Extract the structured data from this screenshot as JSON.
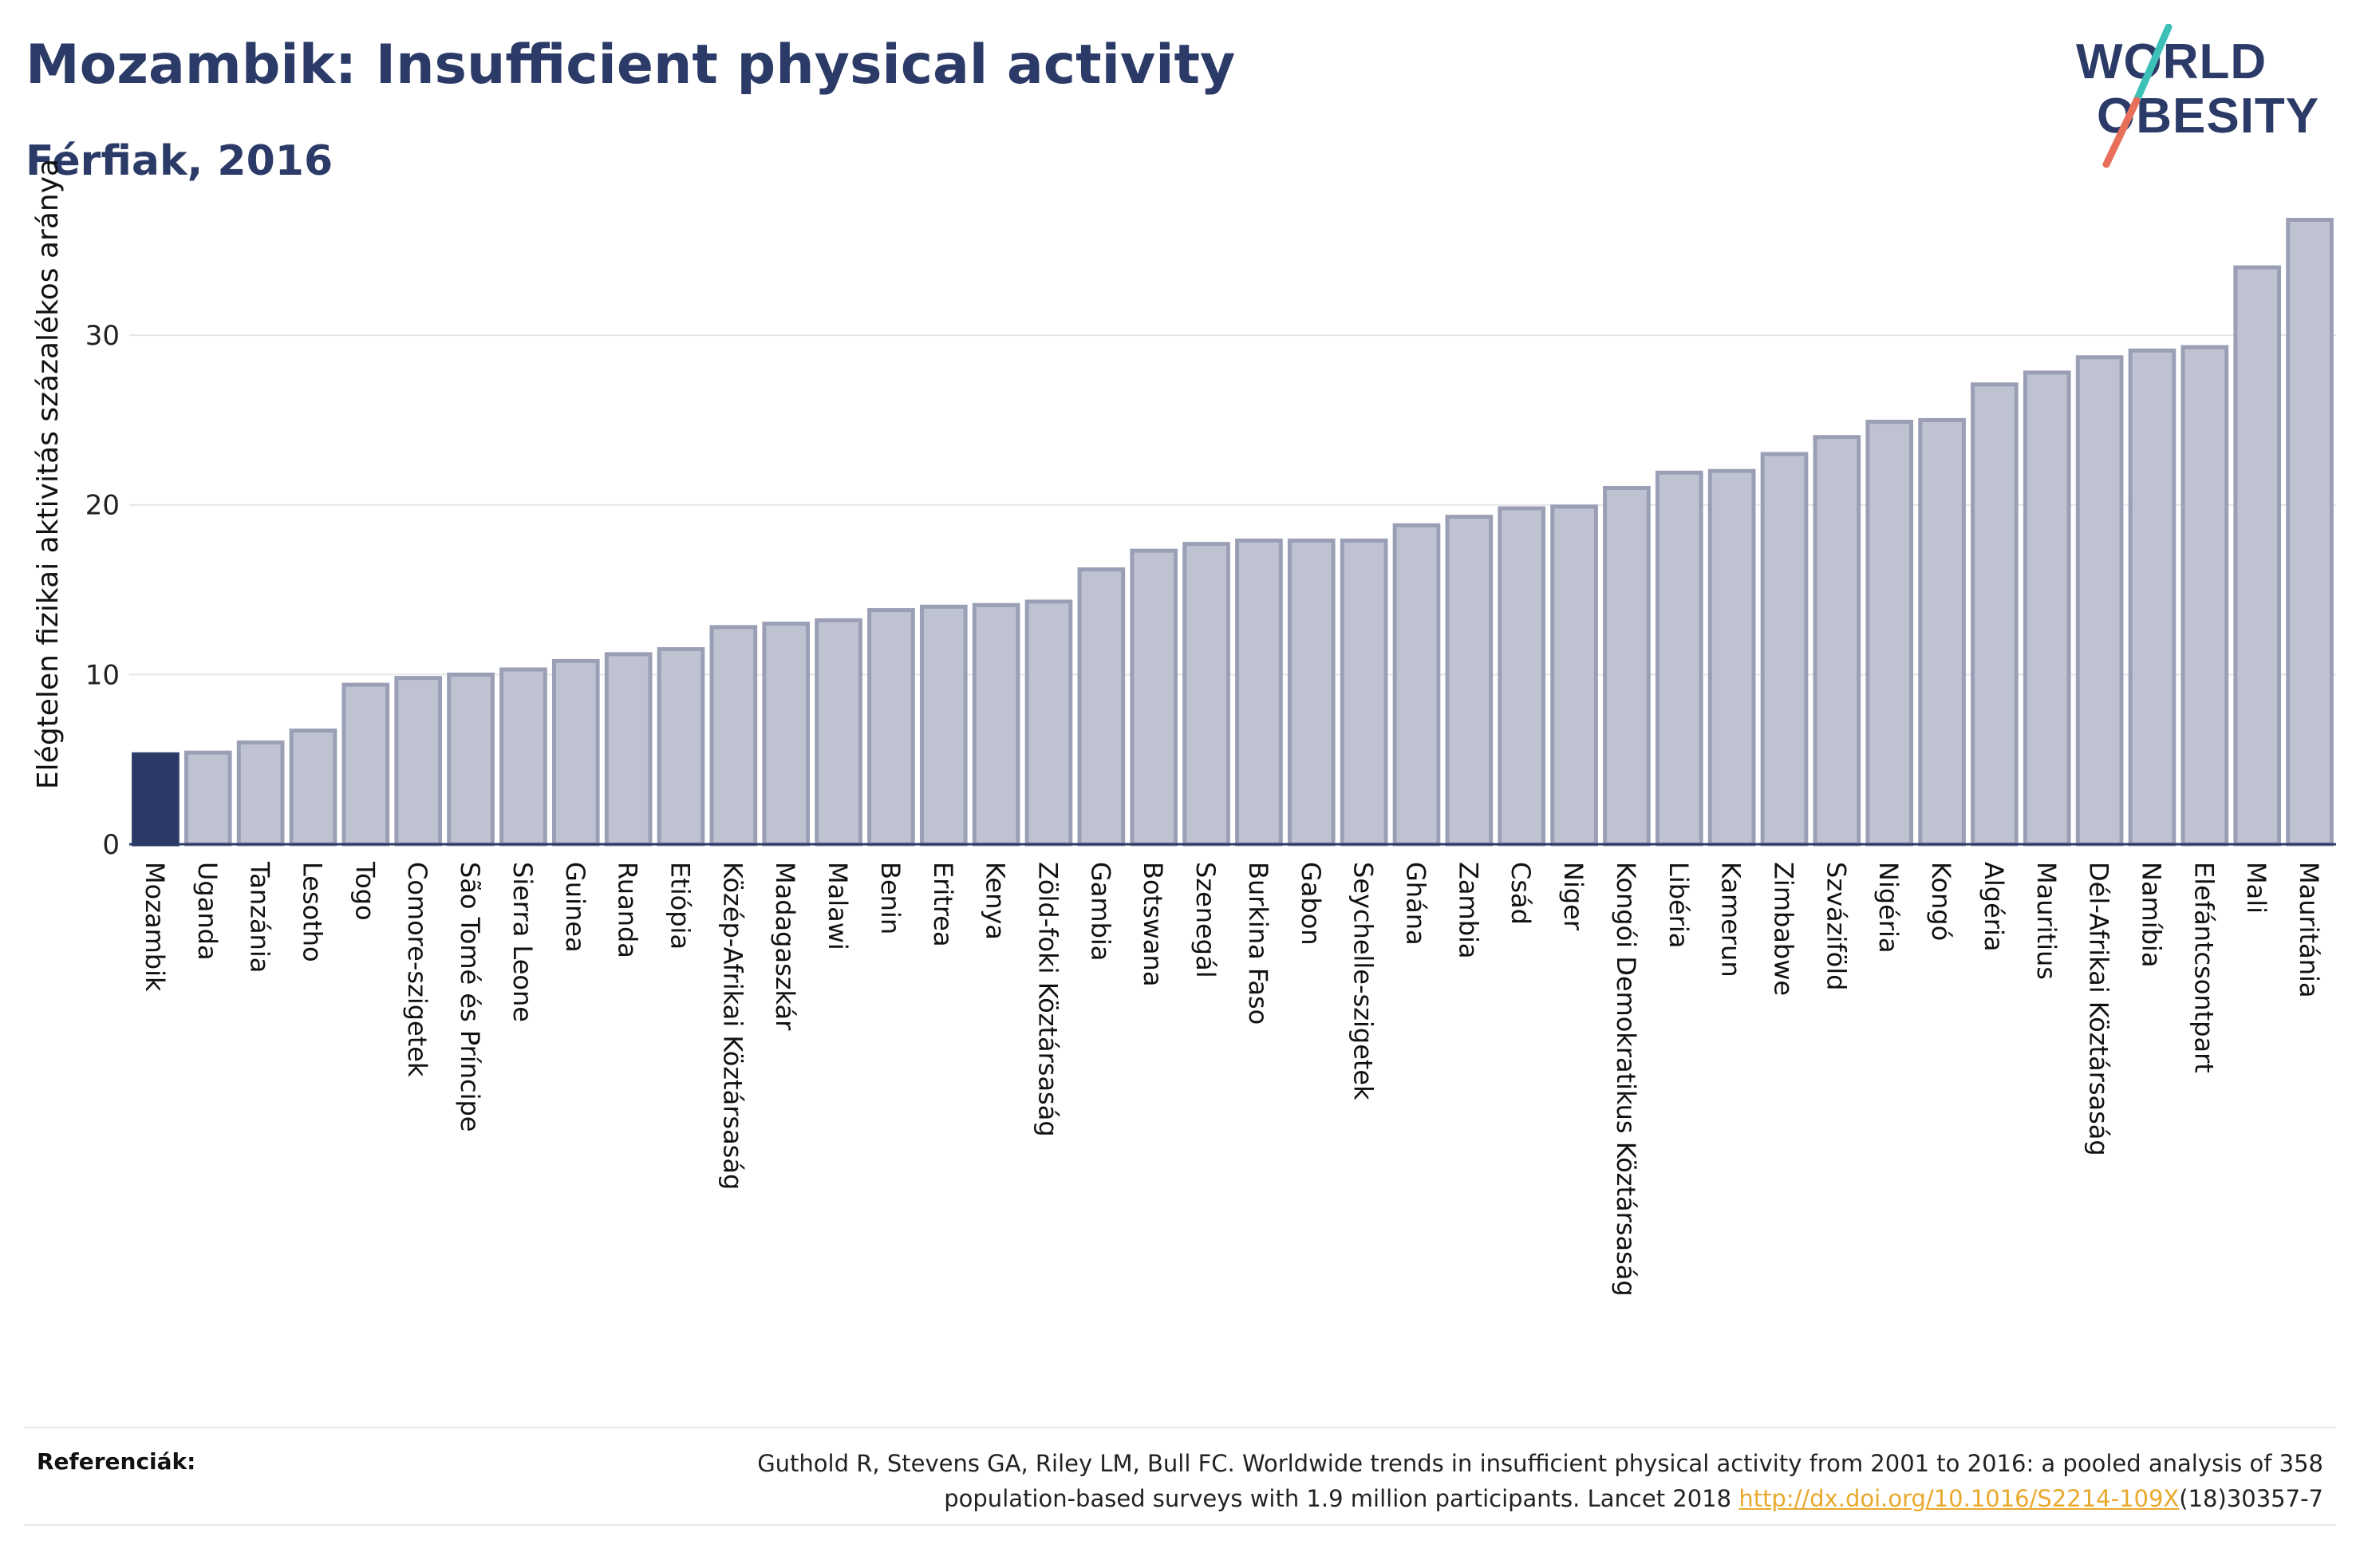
{
  "header": {
    "title": "Mozambik: Insufficient physical activity",
    "subtitle": "Férfiak, 2016"
  },
  "logo": {
    "line1": "WORLD",
    "line2": "OBESITY",
    "colors": {
      "text": "#2b3a67",
      "slash_top": "#3cc0b8",
      "slash_bottom": "#e8705a"
    }
  },
  "chart_data": {
    "type": "bar",
    "ylabel": "Elégtelen fizikai aktivitás százalékos aránya",
    "xlabel": "",
    "ylim": [
      0,
      38
    ],
    "yticks": [
      0,
      10,
      20,
      30
    ],
    "grid": true,
    "highlight_category": "Mozambik",
    "colors": {
      "highlight": "#2b3a67",
      "bar": "#bfc3d1",
      "bar_stroke": "#9a9fb6",
      "axis": "#2b3a67",
      "grid": "#e6e6ea"
    },
    "categories": [
      "Mozambik",
      "Uganda",
      "Tanzánia",
      "Lesotho",
      "Togo",
      "Comore-szigetek",
      "São Tomé és Príncipe",
      "Sierra Leone",
      "Guinea",
      "Ruanda",
      "Etiópia",
      "Közép-Afrikai Köztársaság",
      "Madagaszkár",
      "Malawi",
      "Benin",
      "Eritrea",
      "Kenya",
      "Zöld-foki Köztársaság",
      "Gambia",
      "Botswana",
      "Szenegál",
      "Burkina Faso",
      "Gabon",
      "Seychelle-szigetek",
      "Ghána",
      "Zambia",
      "Csád",
      "Niger",
      "Kongói Demokratikus Köztársaság",
      "Libéria",
      "Kamerun",
      "Zimbabwe",
      "Szváziföld",
      "Nigéria",
      "Kongó",
      "Algéria",
      "Mauritius",
      "Dél-Afrikai Köztársaság",
      "Namíbia",
      "Elefántcsontpart",
      "Mali",
      "Mauritánia"
    ],
    "values": [
      5.3,
      5.4,
      6.0,
      6.7,
      9.4,
      9.8,
      10.0,
      10.3,
      10.8,
      11.2,
      11.5,
      12.8,
      13.0,
      13.2,
      13.8,
      14.0,
      14.1,
      14.3,
      16.2,
      17.3,
      17.7,
      17.9,
      17.9,
      17.9,
      18.8,
      19.3,
      19.8,
      19.9,
      21.0,
      21.9,
      22.0,
      23.0,
      24.0,
      24.9,
      25.0,
      27.1,
      27.8,
      28.7,
      29.1,
      29.3,
      34.0,
      36.8
    ]
  },
  "references": {
    "label": "Referenciák:",
    "text_line1": "Guthold R, Stevens GA, Riley LM, Bull FC. Worldwide trends in insufficient physical activity from 2001 to 2016: a pooled analysis of 358",
    "text_line2_prefix": "population-based surveys with 1.9 million participants. Lancet 2018 ",
    "link_text": "http://dx.doi.org/10.1016/S2214-109X",
    "text_line2_suffix": "(18)30357-7"
  }
}
